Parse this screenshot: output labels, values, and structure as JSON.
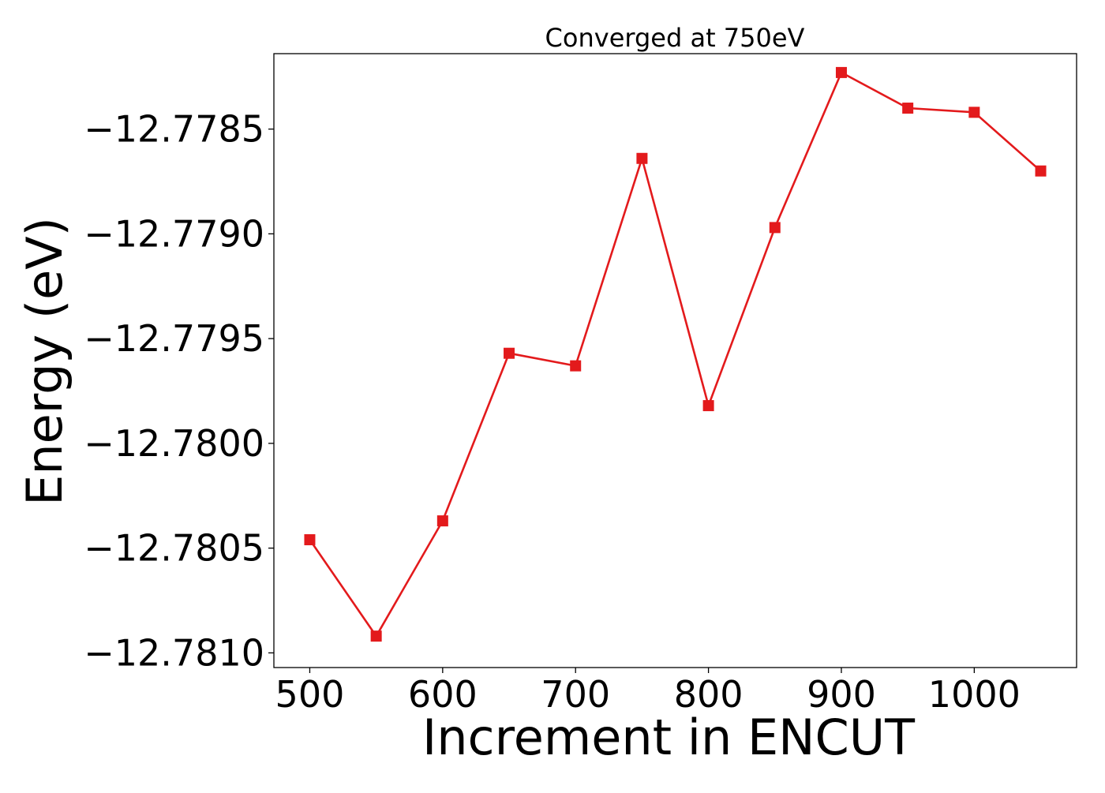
{
  "chart_data": {
    "type": "line",
    "title": "Converged at 750eV",
    "xlabel": "Increment in ENCUT",
    "ylabel": "Energy (eV)",
    "x": [
      500,
      550,
      600,
      650,
      700,
      750,
      800,
      850,
      900,
      950,
      1000,
      1050
    ],
    "series": [
      {
        "values": [
          -12.78046,
          -12.78092,
          -12.78037,
          -12.77957,
          -12.77963,
          -12.77864,
          -12.77982,
          -12.77897,
          -12.77823,
          -12.7784,
          -12.77842,
          -12.7787
        ],
        "color": "#e31a1c",
        "marker": "square"
      }
    ],
    "xticks": [
      500,
      600,
      700,
      800,
      900,
      1000
    ],
    "xtick_labels": [
      "500",
      "600",
      "700",
      "800",
      "900",
      "1000"
    ],
    "yticks": [
      -12.7785,
      -12.779,
      -12.7795,
      -12.78,
      -12.7805,
      -12.781
    ],
    "ytick_labels": [
      "−12.7785",
      "−12.7790",
      "−12.7795",
      "−12.7800",
      "−12.7805",
      "−12.7810"
    ],
    "xlim": [
      473,
      1077
    ],
    "ylim": [
      -12.78107,
      -12.77814
    ],
    "grid": false,
    "legend": false
  }
}
